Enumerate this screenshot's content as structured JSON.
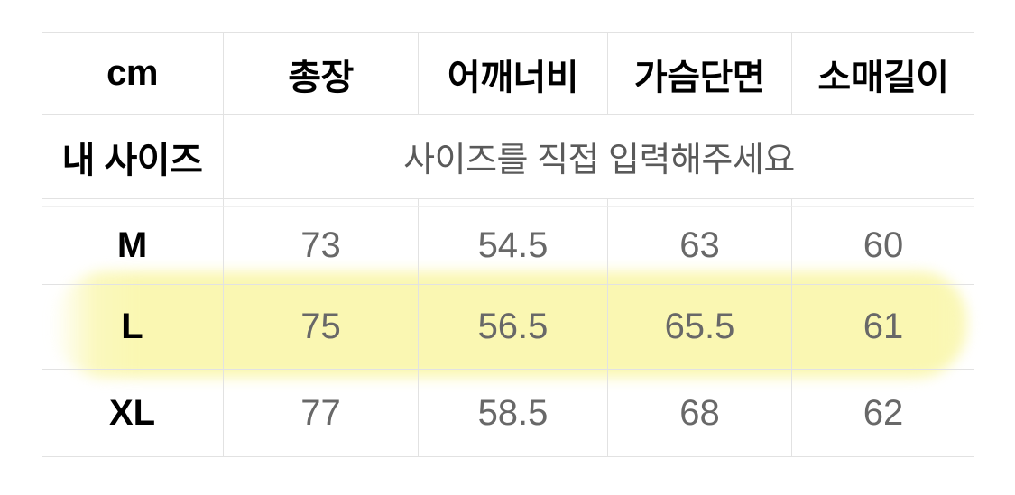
{
  "size_chart": {
    "unit": "cm",
    "columns": [
      "총장",
      "어깨너비",
      "가슴단면",
      "소매길이"
    ],
    "my_size": {
      "label": "내 사이즈",
      "placeholder": "사이즈를 직접 입력해주세요"
    },
    "sizes": [
      {
        "label": "M",
        "values": [
          "73",
          "54.5",
          "63",
          "60"
        ]
      },
      {
        "label": "L",
        "values": [
          "75",
          "56.5",
          "65.5",
          "61"
        ]
      },
      {
        "label": "XL",
        "values": [
          "77",
          "58.5",
          "68",
          "62"
        ]
      }
    ],
    "highlighted_size": "L",
    "colors": {
      "highlight": "#faf7b2",
      "border": "#e2e2e2",
      "faint_border": "#f0f0f0",
      "header_text": "#000000",
      "value_text": "#686868",
      "placeholder_text": "#5a5a5a",
      "background": "#ffffff"
    }
  }
}
